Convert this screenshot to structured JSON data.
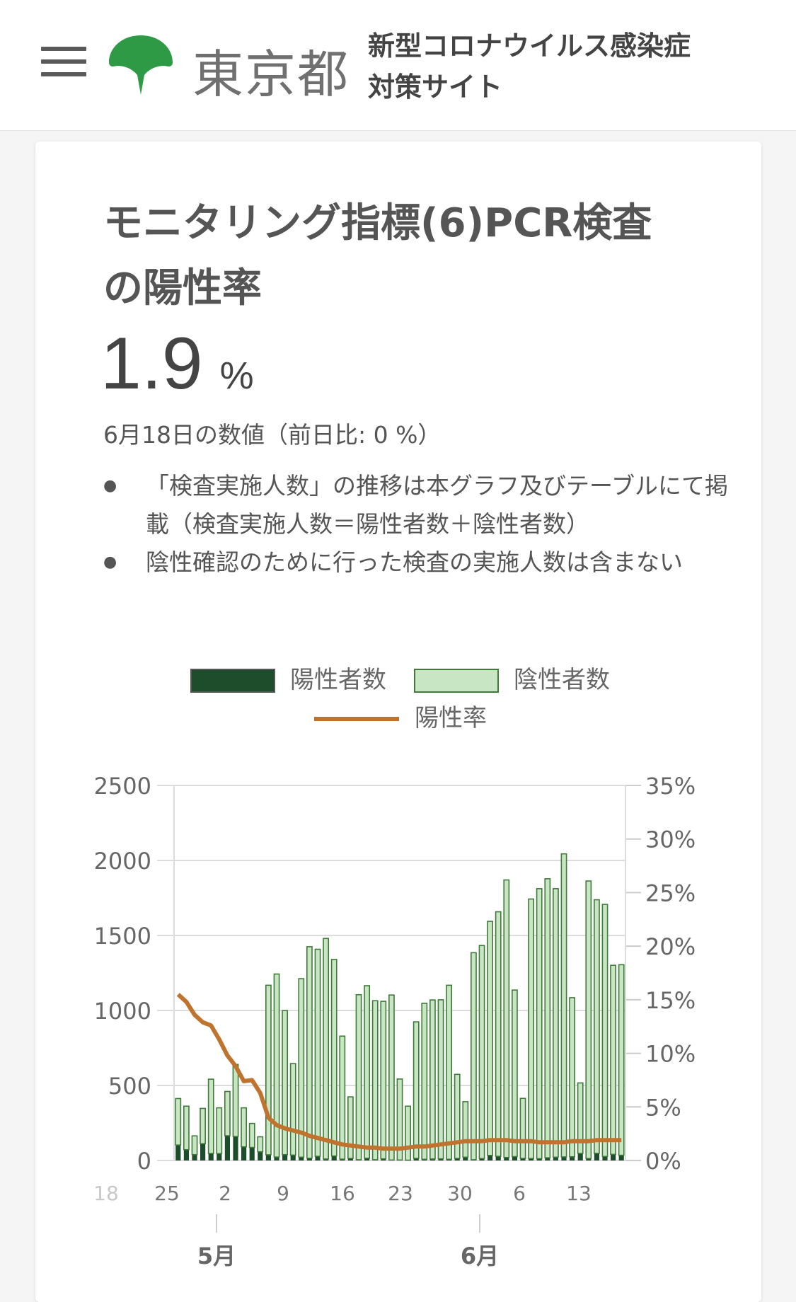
{
  "header": {
    "menu_icon": "hamburger-icon",
    "logo_icon": "tokyo-ginkgo-logo-icon",
    "brand": "東京都",
    "site_title_line1": "新型コロナウイルス感染症",
    "site_title_line2": "対策サイト"
  },
  "card": {
    "title": "モニタリング指標(6)PCR検査の陽性率",
    "value": "1.9",
    "unit": "%",
    "date_note": "6月18日の数値（前日比: 0 %）",
    "notes": [
      "「検査実施人数」の推移は本グラフ及びテーブルにて掲載（検査実施人数＝陽性者数＋陰性者数）",
      "陰性確認のために行った検査の実施人数は含まない"
    ]
  },
  "colors": {
    "positive": "#1e4d2b",
    "negative": "#c8e6c4",
    "negative_border": "#3f7a38",
    "rate": "#c0732e"
  },
  "chart_data": {
    "type": "bar",
    "legend": [
      "陽性者数",
      "陰性者数",
      "陽性率"
    ],
    "y_left": {
      "min": 0,
      "max": 2500,
      "ticks": [
        "0",
        "500",
        "1000",
        "1500",
        "2000",
        "2500"
      ]
    },
    "y_right": {
      "min": 0,
      "max": 35,
      "ticks": [
        "0%",
        "5%",
        "10%",
        "15%",
        "20%",
        "25%",
        "30%",
        "35%"
      ]
    },
    "x_tick_labels": [
      "18",
      "25",
      "2",
      "9",
      "16",
      "23",
      "30",
      "6",
      "13"
    ],
    "month_labels": [
      "5月",
      "6月"
    ],
    "days": [
      "4/25",
      "4/26",
      "4/27",
      "4/28",
      "4/29",
      "4/30",
      "5/1",
      "5/2",
      "5/3",
      "5/4",
      "5/5",
      "5/6",
      "5/7",
      "5/8",
      "5/9",
      "5/10",
      "5/11",
      "5/12",
      "5/13",
      "5/14",
      "5/15",
      "5/16",
      "5/17",
      "5/18",
      "5/19",
      "5/20",
      "5/21",
      "5/22",
      "5/23",
      "5/24",
      "5/25",
      "5/26",
      "5/27",
      "5/28",
      "5/29",
      "5/30",
      "5/31",
      "6/1",
      "6/2",
      "6/3",
      "6/4",
      "6/5",
      "6/6",
      "6/7",
      "6/8",
      "6/9",
      "6/10",
      "6/11",
      "6/12",
      "6/13",
      "6/14",
      "6/15",
      "6/16",
      "6/17",
      "6/18"
    ],
    "positive": [
      103,
      72,
      39,
      112,
      47,
      46,
      165,
      160,
      91,
      87,
      58,
      38,
      23,
      39,
      36,
      22,
      15,
      28,
      10,
      30,
      9,
      14,
      5,
      15,
      5,
      11,
      3,
      3,
      2,
      14,
      8,
      10,
      11,
      8,
      14,
      22,
      5,
      13,
      34,
      28,
      20,
      26,
      14,
      13,
      12,
      18,
      22,
      24,
      25,
      47,
      13,
      48,
      27,
      41,
      35
    ],
    "negative": [
      310,
      290,
      125,
      235,
      495,
      305,
      295,
      480,
      260,
      160,
      100,
      1130,
      1220,
      960,
      610,
      1190,
      1410,
      1380,
      1470,
      1310,
      820,
      410,
      1100,
      1150,
      1060,
      1050,
      1100,
      540,
      360,
      910,
      1040,
      1060,
      1060,
      1160,
      560,
      370,
      1380,
      1420,
      1560,
      1630,
      1850,
      1110,
      400,
      1730,
      1800,
      1860,
      1790,
      2020,
      1060,
      470,
      1850,
      1690,
      1680,
      1260,
      1270
    ],
    "positive_rate": [
      15.5,
      14.8,
      13.6,
      12.9,
      12.6,
      11.3,
      9.8,
      8.8,
      7.4,
      7.5,
      6.3,
      4.0,
      3.3,
      3.0,
      2.8,
      2.6,
      2.3,
      2.1,
      1.9,
      1.7,
      1.5,
      1.4,
      1.3,
      1.2,
      1.2,
      1.1,
      1.1,
      1.1,
      1.2,
      1.3,
      1.3,
      1.4,
      1.5,
      1.6,
      1.7,
      1.8,
      1.8,
      1.8,
      1.9,
      1.9,
      1.9,
      1.8,
      1.8,
      1.8,
      1.7,
      1.7,
      1.7,
      1.7,
      1.8,
      1.8,
      1.8,
      1.9,
      1.9,
      1.9,
      1.9
    ]
  }
}
